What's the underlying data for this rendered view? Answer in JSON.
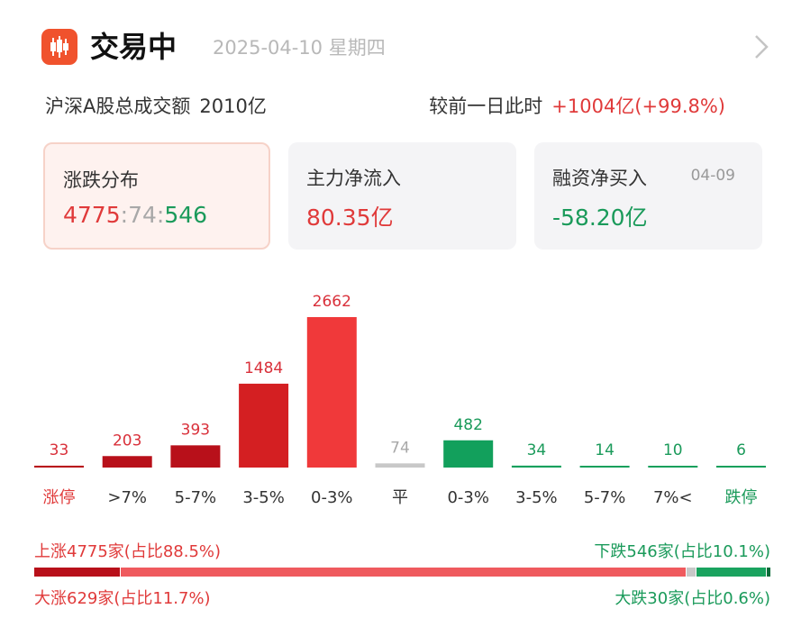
{
  "header": {
    "title": "交易中",
    "date": "2025-04-10 星期四"
  },
  "summary": {
    "turnover_label": "沪深A股总成交额",
    "turnover_value": "2010亿",
    "compare_label": "较前一日此时",
    "compare_value": "+1004亿(+99.8%)"
  },
  "cards": {
    "distribution": {
      "label": "涨跌分布",
      "up": "4775",
      "sep1": ":",
      "flat": "74",
      "sep2": ":",
      "down": "546"
    },
    "main_flow": {
      "label": "主力净流入",
      "value": "80.35亿"
    },
    "margin": {
      "label": "融资净买入",
      "date": "04-09",
      "value": "-58.20亿"
    }
  },
  "chart_data": {
    "type": "bar",
    "title": "",
    "xlabel": "",
    "ylabel": "",
    "categories": [
      "涨停",
      ">7%",
      "5-7%",
      "3-5%",
      "0-3%",
      "平",
      "0-3%",
      "3-5%",
      "5-7%",
      "7%<",
      "跌停"
    ],
    "values": [
      33,
      203,
      393,
      1484,
      2662,
      74,
      482,
      34,
      14,
      10,
      6
    ],
    "directions": [
      "up",
      "up",
      "up",
      "up",
      "up",
      "flat",
      "down",
      "down",
      "down",
      "down",
      "down"
    ],
    "ylim": [
      0,
      2662
    ]
  },
  "legend": {
    "rise": "上涨4775家(占比88.5%)",
    "fall": "下跌546家(占比10.1%)",
    "big_rise": "大涨629家(占比11.7%)",
    "big_fall": "大跌30家(占比0.6%)"
  },
  "ratio_bar": {
    "big_rise_pct": 11.7,
    "rise_pct": 88.5,
    "flat_pct": 1.4,
    "fall_pct": 10.1,
    "big_fall_pct": 0.6
  },
  "colors": {
    "up_strong": "#b8101a",
    "up_mid": "#d41f22",
    "up_bright": "#f0393a",
    "down": "#12a05c",
    "flat": "#c8c8c8",
    "bar_rise": "#ef5a5e",
    "bar_fall": "#1aa35f"
  }
}
